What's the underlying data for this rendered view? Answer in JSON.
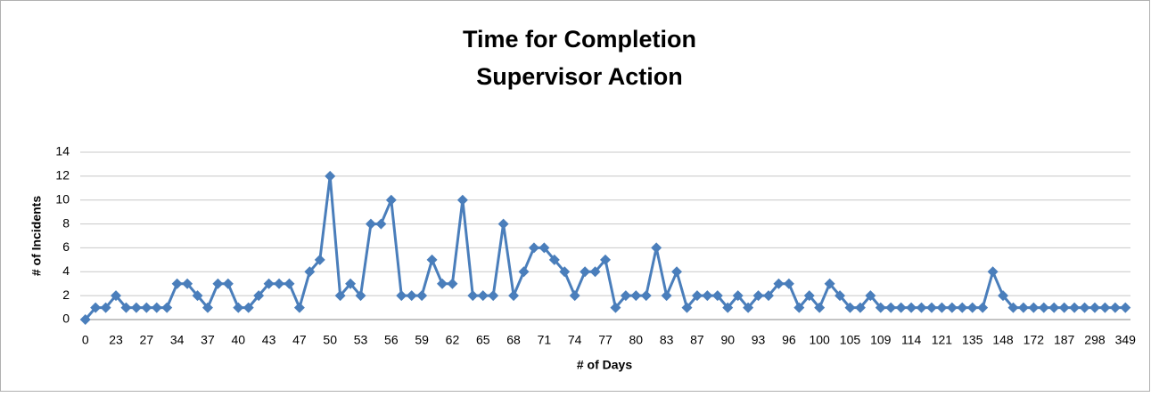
{
  "chart_data": {
    "type": "line",
    "title": [
      "Time for Completion",
      "Supervisor Action"
    ],
    "x_label": "# of Days",
    "y_label": "# of Incidents",
    "categories": [
      "0",
      null,
      null,
      "23",
      null,
      null,
      "27",
      null,
      null,
      "34",
      null,
      null,
      "37",
      null,
      null,
      "40",
      null,
      null,
      "43",
      null,
      null,
      "47",
      null,
      null,
      "50",
      null,
      null,
      "53",
      null,
      null,
      "56",
      null,
      null,
      "59",
      null,
      null,
      "62",
      null,
      null,
      "65",
      null,
      null,
      "68",
      null,
      null,
      "71",
      null,
      null,
      "74",
      null,
      null,
      "77",
      null,
      null,
      "80",
      null,
      null,
      "83",
      null,
      null,
      "87",
      null,
      null,
      "90",
      null,
      null,
      "93",
      null,
      null,
      "96",
      null,
      null,
      "100",
      null,
      null,
      "105",
      null,
      null,
      "109",
      null,
      null,
      "114",
      null,
      null,
      "121",
      null,
      null,
      "135",
      null,
      null,
      "148",
      null,
      null,
      "172",
      null,
      null,
      "187",
      null,
      null,
      "298",
      null,
      null,
      "349"
    ],
    "series": [
      {
        "name": "# of Incidents",
        "color": "#4a7ebb",
        "values": [
          0,
          1,
          1,
          2,
          1,
          1,
          1,
          1,
          1,
          3,
          3,
          2,
          1,
          3,
          3,
          1,
          1,
          2,
          3,
          3,
          3,
          1,
          4,
          5,
          12,
          2,
          3,
          2,
          8,
          8,
          10,
          2,
          2,
          2,
          5,
          3,
          3,
          10,
          2,
          2,
          2,
          8,
          2,
          4,
          6,
          6,
          5,
          4,
          2,
          4,
          4,
          5,
          1,
          2,
          2,
          2,
          6,
          2,
          4,
          1,
          2,
          2,
          2,
          1,
          2,
          1,
          2,
          2,
          3,
          3,
          1,
          2,
          1,
          3,
          2,
          1,
          1,
          2,
          1,
          1,
          1,
          1,
          1,
          1,
          1,
          1,
          1,
          1,
          1,
          4,
          2,
          1,
          1,
          1,
          1,
          1,
          1,
          1,
          1,
          1,
          1,
          1,
          1
        ]
      }
    ],
    "ylim": [
      0,
      14
    ],
    "yticks": [
      0,
      2,
      4,
      6,
      8,
      10,
      12,
      14
    ],
    "grid": true,
    "legend": false
  }
}
